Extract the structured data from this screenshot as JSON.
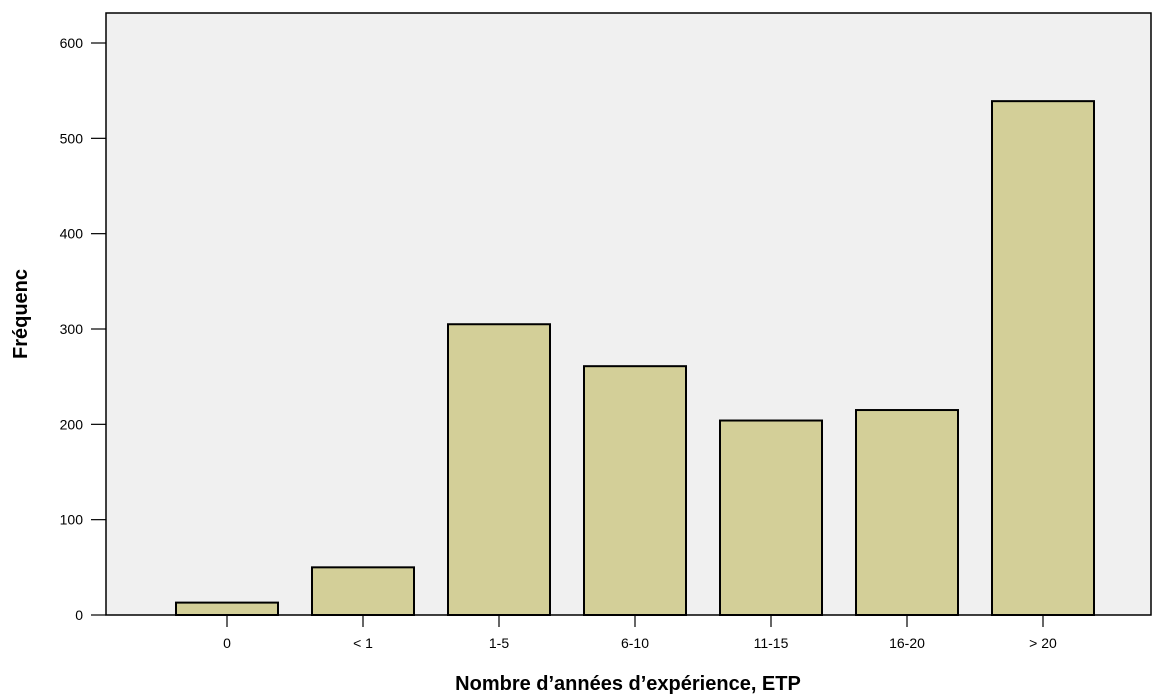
{
  "chart_data": {
    "type": "bar",
    "title": "",
    "xlabel": "Nombre d’années d’expérience, ETP",
    "ylabel": "Fréquenc",
    "categories": [
      "0",
      "< 1",
      "1-5",
      "6-10",
      "11-15",
      "16-20",
      "> 20"
    ],
    "values": [
      13,
      50,
      305,
      261,
      204,
      215,
      539
    ],
    "ylim": [
      0,
      630
    ],
    "yticks": [
      0,
      100,
      200,
      300,
      400,
      500,
      600
    ],
    "ytick_labels": [
      "0",
      "100",
      "200",
      "300",
      "400",
      "500",
      "600"
    ],
    "grid": false,
    "legend": "none",
    "colors": {
      "bar_fill": "#d3cf98",
      "bar_stroke": "#000000",
      "plot_background": "#f0f0f0",
      "axis": "#000000"
    }
  }
}
